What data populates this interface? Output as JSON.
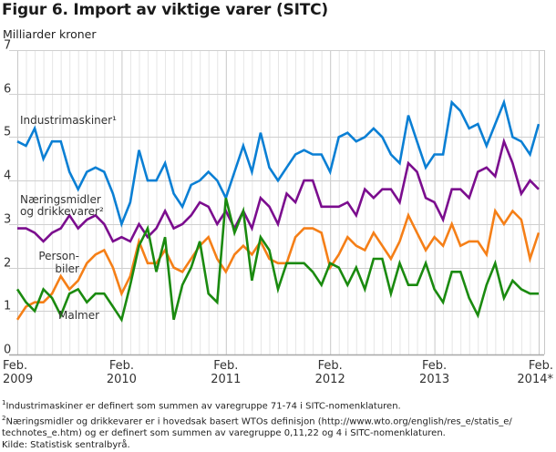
{
  "chart_data": {
    "type": "line",
    "title": "Figur 6. Import av viktige varer (SITC)",
    "ylabel": "Milliarder kroner",
    "xlabel": "",
    "ylim": [
      0,
      7
    ],
    "yticks": [
      "0",
      "1",
      "2",
      "3",
      "4",
      "5",
      "6",
      "7"
    ],
    "xticks": [
      {
        "index": 0,
        "line1": "Feb.",
        "line2": "2009"
      },
      {
        "index": 12,
        "line1": "Feb.",
        "line2": "2010"
      },
      {
        "index": 24,
        "line1": "Feb.",
        "line2": "2011"
      },
      {
        "index": 36,
        "line1": "Feb.",
        "line2": "2012"
      },
      {
        "index": 48,
        "line1": "Feb.",
        "line2": "2013"
      },
      {
        "index": 60,
        "line1": "Feb.",
        "line2": "2014*"
      }
    ],
    "x_start": "Feb. 2009",
    "x_end": "Feb. 2014",
    "frequency": "monthly",
    "grid": true,
    "legend": "inline labels",
    "series": [
      {
        "name": "Industrimaskiner",
        "label_lines": [
          "Industrimaskiner¹"
        ],
        "color": "#0a7fd4",
        "values": [
          4.9,
          4.8,
          5.2,
          4.5,
          4.9,
          4.9,
          4.2,
          3.8,
          4.2,
          4.3,
          4.2,
          3.7,
          3.0,
          3.5,
          4.7,
          4.0,
          4.0,
          4.4,
          3.7,
          3.4,
          3.9,
          4.0,
          4.2,
          4.0,
          3.6,
          4.2,
          4.8,
          4.2,
          5.1,
          4.3,
          4.0,
          4.3,
          4.6,
          4.7,
          4.6,
          4.6,
          4.2,
          5.0,
          5.1,
          4.9,
          5.0,
          5.2,
          5.0,
          4.6,
          4.4,
          5.5,
          4.9,
          4.3,
          4.6,
          4.6,
          5.8,
          5.6,
          5.2,
          5.3,
          4.8,
          5.3,
          5.8,
          5.0,
          4.9,
          4.6,
          5.3
        ]
      },
      {
        "name": "Næringsmidler og drikkevarer",
        "label_lines": [
          "Næringsmidler",
          "og drikkevarer²"
        ],
        "color": "#7b0d8e",
        "values": [
          2.9,
          2.9,
          2.8,
          2.6,
          2.8,
          2.9,
          3.2,
          2.9,
          3.1,
          3.2,
          3.0,
          2.6,
          2.7,
          2.6,
          3.0,
          2.7,
          2.9,
          3.3,
          2.9,
          3.0,
          3.2,
          3.5,
          3.4,
          3.0,
          3.3,
          2.9,
          3.3,
          2.9,
          3.6,
          3.4,
          3.0,
          3.7,
          3.5,
          4.0,
          4.0,
          3.4,
          3.4,
          3.4,
          3.5,
          3.2,
          3.8,
          3.6,
          3.8,
          3.8,
          3.5,
          4.4,
          4.2,
          3.6,
          3.5,
          3.1,
          3.8,
          3.8,
          3.6,
          4.2,
          4.3,
          4.1,
          4.9,
          4.4,
          3.7,
          4.0,
          3.8
        ]
      },
      {
        "name": "Personbiler",
        "label_lines": [
          "Person-",
          "biler"
        ],
        "color": "#f57f17",
        "values": [
          0.8,
          1.1,
          1.2,
          1.2,
          1.4,
          1.8,
          1.5,
          1.7,
          2.1,
          2.3,
          2.4,
          2.0,
          1.4,
          1.8,
          2.6,
          2.1,
          2.1,
          2.4,
          2.0,
          1.9,
          2.2,
          2.5,
          2.7,
          2.2,
          1.9,
          2.3,
          2.5,
          2.3,
          2.6,
          2.2,
          2.1,
          2.1,
          2.7,
          2.9,
          2.9,
          2.8,
          2.0,
          2.3,
          2.7,
          2.5,
          2.4,
          2.8,
          2.5,
          2.2,
          2.6,
          3.2,
          2.8,
          2.4,
          2.7,
          2.5,
          3.0,
          2.5,
          2.6,
          2.6,
          2.3,
          3.3,
          3.0,
          3.3,
          3.1,
          2.2,
          2.8
        ]
      },
      {
        "name": "Malmer",
        "label_lines": [
          "Malmer"
        ],
        "color": "#1a8a0f",
        "values": [
          1.5,
          1.2,
          1.0,
          1.5,
          1.3,
          0.9,
          1.4,
          1.5,
          1.2,
          1.4,
          1.4,
          1.1,
          0.8,
          1.6,
          2.5,
          2.9,
          1.9,
          2.7,
          0.8,
          1.6,
          2.0,
          2.6,
          1.4,
          1.2,
          3.6,
          2.8,
          3.3,
          1.7,
          2.7,
          2.4,
          1.5,
          2.1,
          2.1,
          2.1,
          1.9,
          1.6,
          2.1,
          2.0,
          1.6,
          2.0,
          1.5,
          2.2,
          2.2,
          1.4,
          2.1,
          1.6,
          1.6,
          2.1,
          1.5,
          1.2,
          1.9,
          1.9,
          1.3,
          0.9,
          1.6,
          2.1,
          1.3,
          1.7,
          1.5,
          1.4,
          1.4
        ]
      }
    ]
  },
  "footnotes": {
    "note1_marker": "1",
    "note1": "Industrimaskiner er definert som summen av varegruppe 71-74 i SITC-nomenklaturen.",
    "note2_marker": "2",
    "note2_line1": "Næringsmidler og drikkevarer  er i hovedsak basert WTOs definisjon (http://www.wto.org/english/res_e/statis_e/",
    "note2_line2": "technotes_e.htm) og er definert som summen av varegruppe 0,11,22 og 4 i SITC-nomenklaturen.",
    "source": "Kilde: Statistisk sentralbyrå."
  }
}
